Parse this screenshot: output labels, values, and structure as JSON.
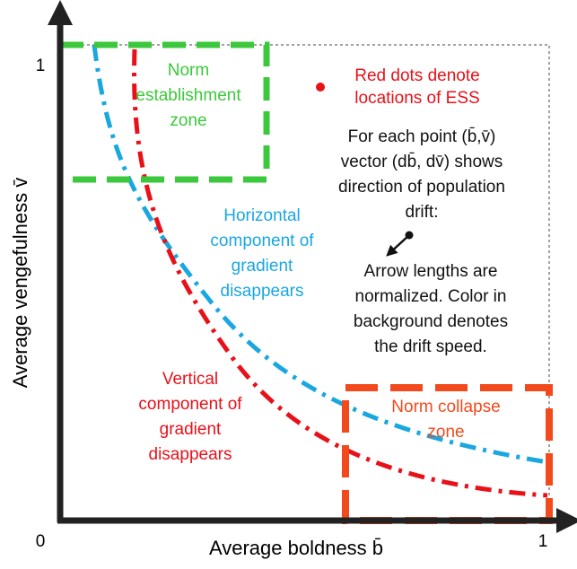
{
  "axes": {
    "x_label": "Average boldness b̄",
    "y_label": "Average vengefulness v̄",
    "origin_label": "0",
    "x_max_label": "1",
    "y_max_label": "1"
  },
  "zones": {
    "establishment": [
      "Norm",
      "establishment",
      "zone"
    ],
    "collapse": [
      "Norm collapse",
      "zone"
    ]
  },
  "annotations": {
    "ess": [
      "Red dots denote",
      "locations of ESS"
    ],
    "vector": [
      "For each point (b̄,v̄)",
      "vector (db̄, dv̄) shows",
      "direction of population",
      "drift:"
    ],
    "arrows": [
      "Arrow lengths are",
      "normalized. Color in",
      "background denotes",
      "the drift speed."
    ],
    "horizontal": [
      "Horizontal",
      "component of",
      "gradient",
      "disappears"
    ],
    "vertical": [
      "Vertical",
      "component of",
      "gradient",
      "disappears"
    ]
  }
}
